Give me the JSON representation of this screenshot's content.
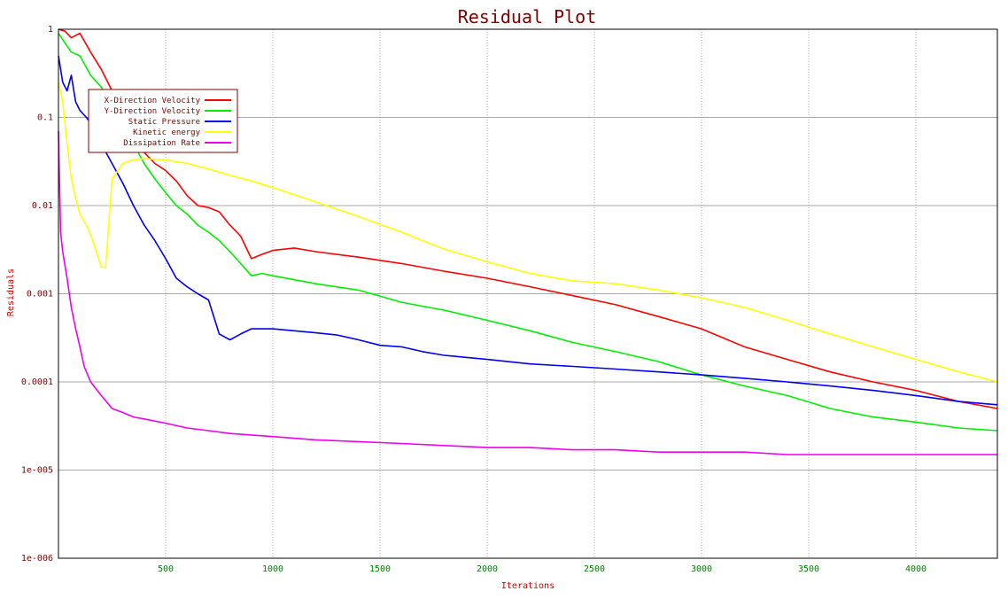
{
  "chart_data": {
    "type": "line",
    "title": "Residual Plot",
    "xlabel": "Iterations",
    "ylabel": "Residuals",
    "x_scale": "linear",
    "y_scale": "log",
    "xlim": [
      0,
      4380
    ],
    "ylim": [
      1e-06,
      1
    ],
    "grid": true,
    "legend_position": "top-left",
    "x_ticks": [
      {
        "value": 500,
        "label": "500"
      },
      {
        "value": 1000,
        "label": "1000"
      },
      {
        "value": 1500,
        "label": "1500"
      },
      {
        "value": 2000,
        "label": "2000"
      },
      {
        "value": 2500,
        "label": "2500"
      },
      {
        "value": 3000,
        "label": "3000"
      },
      {
        "value": 3500,
        "label": "3500"
      },
      {
        "value": 4000,
        "label": "4000"
      }
    ],
    "y_ticks": [
      {
        "value": 1,
        "label": "1"
      },
      {
        "value": 0.1,
        "label": "0.1"
      },
      {
        "value": 0.01,
        "label": "0.01"
      },
      {
        "value": 0.001,
        "label": "0.001"
      },
      {
        "value": 0.0001,
        "label": "0.0001"
      },
      {
        "value": 1e-05,
        "label": "1e-005"
      },
      {
        "value": 1e-06,
        "label": "1e-006"
      }
    ],
    "colors": {
      "title": "#800000",
      "axis_label": "#cc0000",
      "x_tick": "#008000",
      "y_tick": "#800000",
      "grid": "#a8a8a8",
      "frame": "#000000"
    },
    "series": [
      {
        "name": "X-Direction Velocity",
        "color": "#ff0000",
        "x": [
          0,
          30,
          60,
          100,
          150,
          200,
          250,
          300,
          350,
          400,
          450,
          500,
          550,
          600,
          650,
          700,
          750,
          800,
          850,
          900,
          950,
          1000,
          1100,
          1200,
          1400,
          1600,
          1800,
          2000,
          2200,
          2400,
          2600,
          2800,
          3000,
          3200,
          3400,
          3600,
          3800,
          4000,
          4200,
          4380
        ],
        "y": [
          1,
          0.95,
          0.8,
          0.9,
          0.55,
          0.35,
          0.2,
          0.09,
          0.05,
          0.04,
          0.03,
          0.025,
          0.019,
          0.013,
          0.01,
          0.0095,
          0.0085,
          0.006,
          0.0045,
          0.0025,
          0.0028,
          0.0031,
          0.0033,
          0.003,
          0.0026,
          0.0022,
          0.0018,
          0.0015,
          0.0012,
          0.00095,
          0.00075,
          0.00055,
          0.0004,
          0.00025,
          0.00018,
          0.00013,
          0.0001,
          8e-05,
          6e-05,
          5e-05
        ]
      },
      {
        "name": "Y-Direction Velocity",
        "color": "#00ee00",
        "x": [
          0,
          30,
          60,
          100,
          150,
          200,
          250,
          300,
          350,
          400,
          450,
          500,
          550,
          600,
          650,
          700,
          750,
          800,
          850,
          900,
          950,
          1000,
          1200,
          1400,
          1600,
          1800,
          2000,
          2200,
          2400,
          2600,
          2800,
          3000,
          3200,
          3400,
          3600,
          3800,
          4000,
          4200,
          4380
        ],
        "y": [
          0.9,
          0.7,
          0.55,
          0.5,
          0.3,
          0.22,
          0.14,
          0.08,
          0.05,
          0.03,
          0.02,
          0.014,
          0.01,
          0.008,
          0.006,
          0.005,
          0.004,
          0.003,
          0.0022,
          0.0016,
          0.0017,
          0.0016,
          0.0013,
          0.0011,
          0.0008,
          0.00065,
          0.0005,
          0.00038,
          0.00028,
          0.00022,
          0.00017,
          0.00012,
          9e-05,
          7e-05,
          5e-05,
          4e-05,
          3.5e-05,
          3e-05,
          2.8e-05
        ]
      },
      {
        "name": "Static Pressure",
        "color": "#0000ee",
        "x": [
          0,
          20,
          40,
          60,
          80,
          100,
          130,
          160,
          200,
          250,
          300,
          350,
          400,
          450,
          500,
          550,
          600,
          650,
          700,
          750,
          800,
          850,
          900,
          1000,
          1100,
          1200,
          1300,
          1400,
          1500,
          1600,
          1700,
          1800,
          1900,
          2000,
          2200,
          2400,
          2600,
          2800,
          3000,
          3200,
          3400,
          3600,
          3800,
          4000,
          4200,
          4380
        ],
        "y": [
          0.5,
          0.25,
          0.2,
          0.3,
          0.15,
          0.12,
          0.1,
          0.08,
          0.05,
          0.03,
          0.018,
          0.01,
          0.006,
          0.004,
          0.0025,
          0.0015,
          0.0012,
          0.001,
          0.00085,
          0.00035,
          0.0003,
          0.00035,
          0.0004,
          0.0004,
          0.00038,
          0.00036,
          0.00034,
          0.0003,
          0.00026,
          0.00025,
          0.00022,
          0.0002,
          0.00019,
          0.00018,
          0.00016,
          0.00015,
          0.00014,
          0.00013,
          0.00012,
          0.00011,
          0.0001,
          9e-05,
          8e-05,
          7e-05,
          6e-05,
          5.5e-05
        ]
      },
      {
        "name": "Kinetic energy",
        "color": "#ffff00",
        "x": [
          0,
          20,
          40,
          60,
          80,
          100,
          130,
          160,
          200,
          220,
          250,
          300,
          350,
          400,
          500,
          600,
          700,
          800,
          900,
          1000,
          1200,
          1400,
          1600,
          1800,
          2000,
          2200,
          2400,
          2600,
          2800,
          3000,
          3200,
          3400,
          3600,
          3800,
          4000,
          4200,
          4380
        ],
        "y": [
          0.25,
          0.15,
          0.05,
          0.02,
          0.012,
          0.008,
          0.006,
          0.004,
          0.002,
          0.002,
          0.02,
          0.03,
          0.033,
          0.034,
          0.033,
          0.03,
          0.026,
          0.022,
          0.019,
          0.016,
          0.011,
          0.0075,
          0.005,
          0.0032,
          0.0023,
          0.0017,
          0.0014,
          0.0013,
          0.0011,
          0.0009,
          0.0007,
          0.0005,
          0.00035,
          0.00025,
          0.00018,
          0.00013,
          0.0001
        ]
      },
      {
        "name": "Dissipation Rate",
        "color": "#ee00ee",
        "x": [
          0,
          10,
          20,
          40,
          60,
          80,
          100,
          120,
          150,
          200,
          250,
          300,
          350,
          400,
          500,
          600,
          700,
          800,
          900,
          1000,
          1200,
          1400,
          1600,
          1800,
          2000,
          2200,
          2400,
          2600,
          2800,
          3000,
          3200,
          3400,
          3600,
          3800,
          4000,
          4200,
          4380
        ],
        "y": [
          0.07,
          0.005,
          0.003,
          0.0015,
          0.0007,
          0.0004,
          0.00025,
          0.00015,
          0.0001,
          7e-05,
          5e-05,
          4.5e-05,
          4e-05,
          3.8e-05,
          3.4e-05,
          3e-05,
          2.8e-05,
          2.6e-05,
          2.5e-05,
          2.4e-05,
          2.2e-05,
          2.1e-05,
          2e-05,
          1.9e-05,
          1.8e-05,
          1.8e-05,
          1.7e-05,
          1.7e-05,
          1.6e-05,
          1.6e-05,
          1.6e-05,
          1.5e-05,
          1.5e-05,
          1.5e-05,
          1.5e-05,
          1.5e-05,
          1.5e-05
        ]
      }
    ]
  }
}
